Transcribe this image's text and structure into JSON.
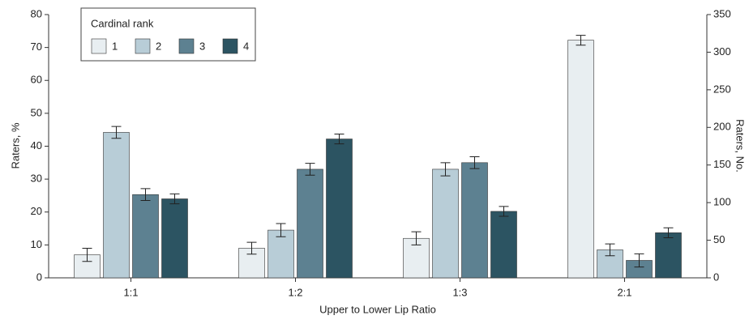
{
  "chart_data": {
    "type": "bar",
    "categories": [
      "1:1",
      "1:2",
      "1:3",
      "2:1"
    ],
    "xlabel": "Upper to Lower Lip Ratio",
    "ylabel": "Raters, %",
    "y2label": "Raters, No.",
    "legend_title": "Cardinal rank",
    "legend": "upper left",
    "series": [
      {
        "name": "1",
        "color": "#e8eef1",
        "values": [
          7,
          9,
          12,
          72.2
        ],
        "errors": [
          2,
          1.8,
          2,
          1.5
        ]
      },
      {
        "name": "2",
        "color": "#b8cdd7",
        "values": [
          44.2,
          14.5,
          33,
          8.5
        ],
        "errors": [
          1.8,
          2,
          2,
          1.8
        ]
      },
      {
        "name": "3",
        "color": "#5d8191",
        "values": [
          25.3,
          33,
          35,
          5.3
        ],
        "errors": [
          1.8,
          1.8,
          1.8,
          2
        ]
      },
      {
        "name": "4",
        "color": "#2c5462",
        "values": [
          24,
          42.2,
          20.2,
          13.7
        ],
        "errors": [
          1.5,
          1.5,
          1.5,
          1.5
        ]
      }
    ],
    "ylim": [
      0,
      80
    ],
    "yticks": [
      0,
      10,
      20,
      30,
      40,
      50,
      60,
      70,
      80
    ],
    "y2lim": [
      0,
      350
    ],
    "y2ticks": [
      0,
      50,
      100,
      150,
      200,
      250,
      300,
      350
    ]
  }
}
